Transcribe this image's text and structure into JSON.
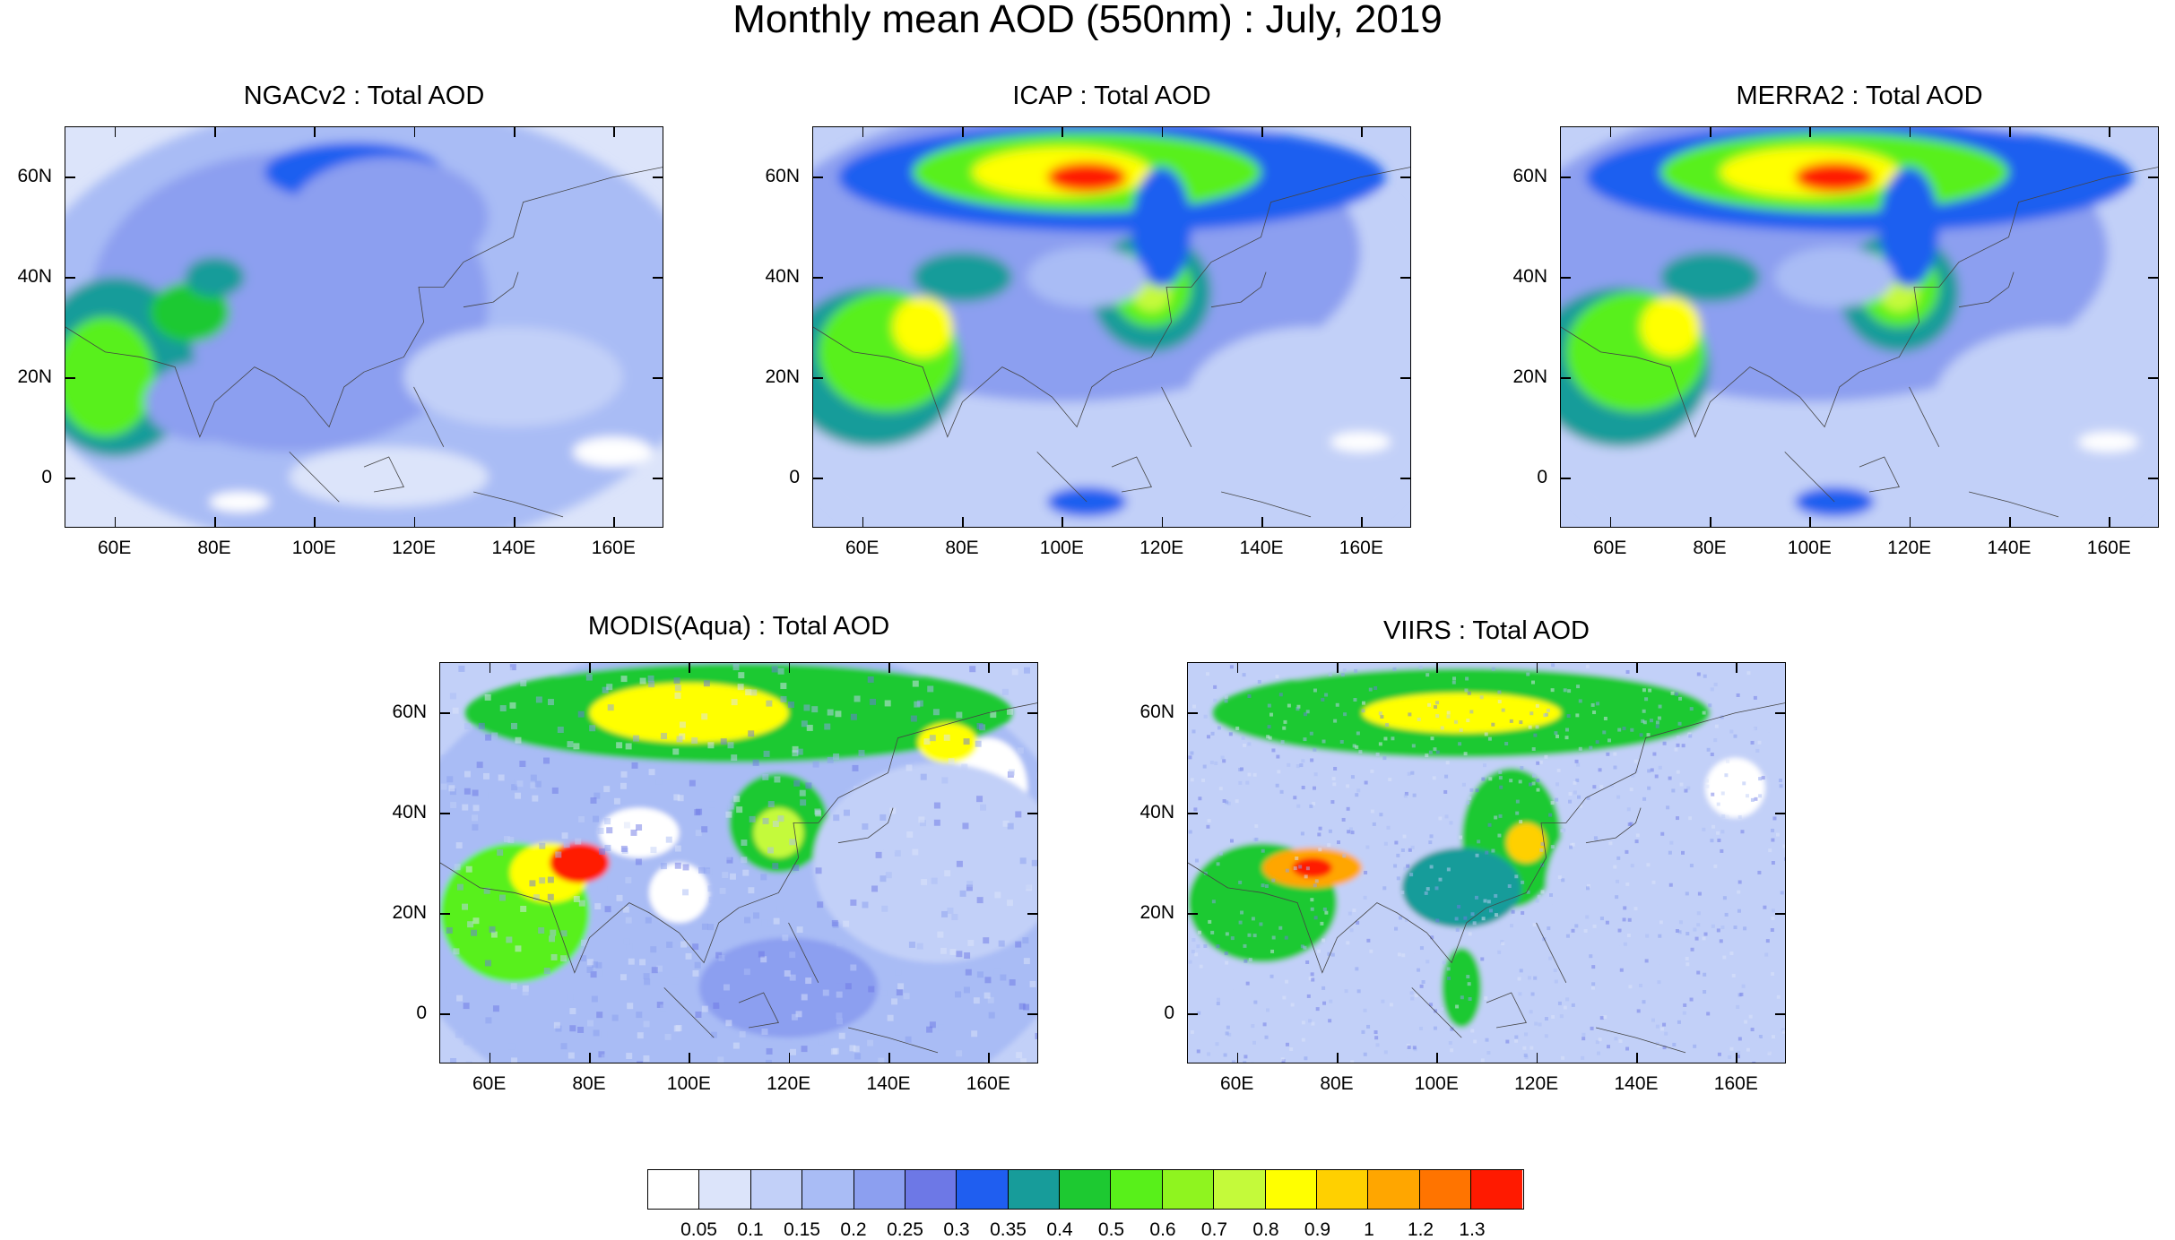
{
  "figure": {
    "title": "Monthly mean AOD (550nm) : July, 2019"
  },
  "panels": [
    {
      "id": "ngacv2",
      "title": "NGACv2 : Total AOD"
    },
    {
      "id": "icap",
      "title": "ICAP : Total AOD"
    },
    {
      "id": "merra2",
      "title": "MERRA2 : Total AOD"
    },
    {
      "id": "modis",
      "title": "MODIS(Aqua) : Total AOD"
    },
    {
      "id": "viirs",
      "title": "VIIRS : Total AOD"
    }
  ],
  "axes": {
    "lon_labels": [
      "60E",
      "80E",
      "100E",
      "120E",
      "140E",
      "160E"
    ],
    "lon_values": [
      60,
      80,
      100,
      120,
      140,
      160
    ],
    "lat_labels": [
      "60N",
      "40N",
      "20N",
      "0"
    ],
    "lat_values": [
      60,
      40,
      20,
      0
    ],
    "lon_range": [
      50,
      170
    ],
    "lat_range": [
      -10,
      70
    ]
  },
  "colorbar": {
    "labels": [
      "0.05",
      "0.1",
      "0.15",
      "0.2",
      "0.25",
      "0.3",
      "0.35",
      "0.4",
      "0.5",
      "0.6",
      "0.7",
      "0.8",
      "0.9",
      "1",
      "1.2",
      "1.3"
    ],
    "colors": [
      "#ffffff",
      "#dce4fa",
      "#c2d0f8",
      "#a9bcf5",
      "#8c9ff0",
      "#6d78e6",
      "#1f5ef0",
      "#179c9a",
      "#1dc931",
      "#58f01a",
      "#8ff41f",
      "#c4fa3a",
      "#ffff00",
      "#ffd000",
      "#ffa600",
      "#ff7400",
      "#ff1a00"
    ]
  }
}
